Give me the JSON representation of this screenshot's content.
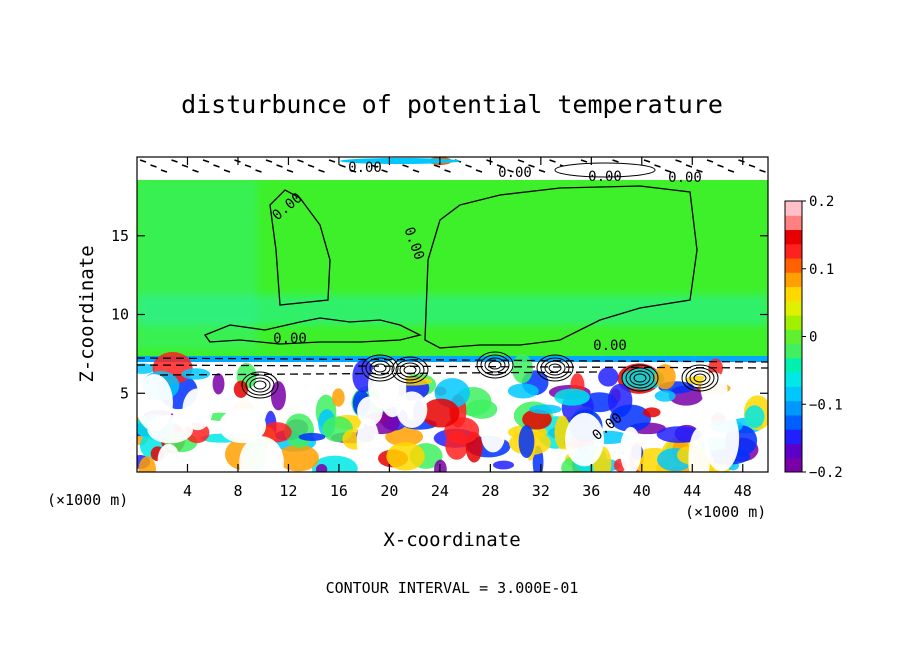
{
  "chart_data": {
    "type": "heatmap",
    "title": "disturbunce of potential temperature",
    "xlabel": "X-coordinate",
    "ylabel": "Z-coordinate",
    "x_unit_left": "(×1000 m)",
    "x_unit_right": "(×1000 m)",
    "footer": "CONTOUR INTERVAL = 3.000E-01",
    "xlim": [
      0,
      50
    ],
    "ylim": [
      0,
      20
    ],
    "xticks": [
      4,
      8,
      12,
      16,
      20,
      24,
      28,
      32,
      36,
      40,
      44,
      48
    ],
    "yticks": [
      5,
      10,
      15
    ],
    "colorbar": {
      "range": [
        -0.2,
        0.2
      ],
      "ticks": [
        {
          "value": 0.2,
          "label": "0.2"
        },
        {
          "value": 0.1,
          "label": "0.1"
        },
        {
          "value": 0.0,
          "label": "0"
        },
        {
          "value": -0.1,
          "label": "−0.1"
        },
        {
          "value": -0.2,
          "label": "−0.2"
        }
      ],
      "colors": [
        "#7a00a8",
        "#5a00c8",
        "#2020ff",
        "#0060ff",
        "#0098ff",
        "#00c8ff",
        "#00e8e8",
        "#00f0b0",
        "#40f060",
        "#60f030",
        "#a0f000",
        "#e0f000",
        "#ffd800",
        "#ffa000",
        "#ff6000",
        "#ff2020",
        "#e80000",
        "#ff8080",
        "#ffc0c8"
      ]
    },
    "contour_labels": [
      "0.00"
    ]
  }
}
